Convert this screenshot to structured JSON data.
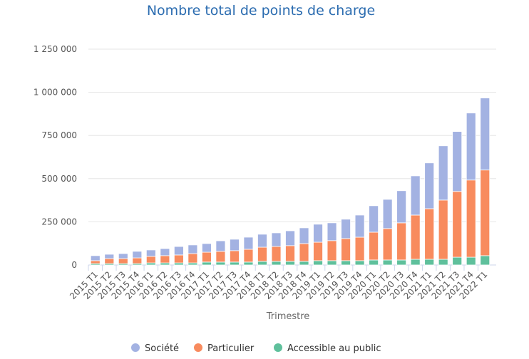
{
  "chart_data": {
    "type": "bar",
    "stacked": true,
    "title": "Nombre total de points de charge",
    "xlabel": "Trimestre",
    "ylabel": "",
    "ylim": [
      0,
      1250000
    ],
    "yticks": [
      0,
      250000,
      500000,
      750000,
      1000000,
      1250000
    ],
    "ytick_labels": [
      "0",
      "250 000",
      "500 000",
      "750 000",
      "1 000 000",
      "1 250 000"
    ],
    "grid": true,
    "legend_position": "bottom",
    "categories": [
      "2015 T1",
      "2015 T2",
      "2015 T3",
      "2015 T4",
      "2016 T1",
      "2016 T2",
      "2016 T3",
      "2016 T4",
      "2017 T1",
      "2017 T2",
      "2017 T3",
      "2017 T4",
      "2018 T1",
      "2018 T2",
      "2018 T3",
      "2018 T4",
      "2019 T1",
      "2019 T2",
      "2019 T3",
      "2019 T4",
      "2020 T1",
      "2020 T2",
      "2020 T3",
      "2020 T4",
      "2021 T1",
      "2021 T2",
      "2021 T3",
      "2021 T4",
      "2022 T1"
    ],
    "series": [
      {
        "name": "Accessible au public",
        "color": "#5fc09c",
        "values": [
          8000,
          8000,
          8000,
          8000,
          12000,
          12000,
          12000,
          12000,
          17000,
          17000,
          17000,
          17000,
          21000,
          21000,
          21000,
          21000,
          25000,
          25000,
          25000,
          25000,
          29000,
          29000,
          29000,
          33000,
          33000,
          33000,
          45000,
          45000,
          54000
        ]
      },
      {
        "name": "Particulier",
        "color": "#f88b5e",
        "values": [
          17000,
          29000,
          29000,
          33000,
          38000,
          42000,
          46000,
          54000,
          57000,
          62000,
          66000,
          74000,
          82000,
          86000,
          91000,
          103000,
          107000,
          116000,
          128000,
          136000,
          161000,
          182000,
          215000,
          256000,
          293000,
          343000,
          381000,
          447000,
          496000
        ]
      },
      {
        "name": "Société",
        "color": "#a3b2e2",
        "values": [
          29000,
          25000,
          29000,
          38000,
          37000,
          41000,
          49000,
          50000,
          50000,
          61000,
          66000,
          70000,
          75000,
          79000,
          86000,
          91000,
          104000,
          103000,
          112000,
          128000,
          153000,
          169000,
          186000,
          227000,
          265000,
          314000,
          347000,
          388000,
          417000
        ]
      }
    ],
    "legend_order": [
      "Société",
      "Particulier",
      "Accessible au public"
    ]
  },
  "colors": {
    "title": "#2b6cb0",
    "axis_text": "#555555",
    "grid": "#e6e6e6"
  }
}
